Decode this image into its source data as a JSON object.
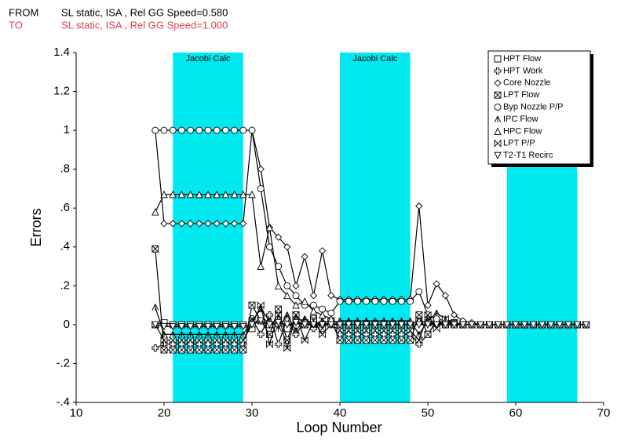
{
  "chart_data": {
    "type": "line",
    "header": [
      {
        "label": "FROM",
        "text": "SL static, ISA ,  Rel GG Speed=0.580",
        "color": "#000000"
      },
      {
        "label": "TO",
        "text": "SL static, ISA ,  Rel GG Speed=1.000",
        "color": "#d9434b"
      }
    ],
    "x_label": "Loop Number",
    "y_label": "Errors",
    "xlim": [
      10,
      70
    ],
    "xticks": [
      10,
      20,
      30,
      40,
      50,
      60,
      70
    ],
    "ylim": [
      -0.4,
      1.4
    ],
    "yticks": [
      {
        "value": -0.4,
        "label": "-.4"
      },
      {
        "value": -0.2,
        "label": "-.2"
      },
      0,
      {
        "value": 0.2,
        "label": ".2"
      },
      {
        "value": 0.4,
        "label": ".4"
      },
      {
        "value": 0.6,
        "label": ".6"
      },
      {
        "value": 0.8,
        "label": ".8"
      },
      1,
      1.2,
      1.4
    ],
    "bands": [
      {
        "xlim": [
          21,
          29
        ],
        "label": "Jacobi Calc"
      },
      {
        "xlim": [
          40,
          48
        ],
        "label": "Jacobi Calc"
      },
      {
        "xlim": [
          59,
          67
        ]
      }
    ],
    "band_color": "#00e8f0",
    "x": [
      19,
      20,
      21,
      22,
      23,
      24,
      25,
      26,
      27,
      28,
      29,
      30,
      31,
      32,
      33,
      34,
      35,
      36,
      37,
      38,
      39,
      40,
      41,
      42,
      43,
      44,
      45,
      46,
      47,
      48,
      49,
      50,
      51,
      52,
      53,
      54,
      55,
      56,
      57,
      58,
      59,
      60,
      61,
      62,
      63,
      64,
      65,
      66,
      67,
      68
    ],
    "series": [
      {
        "name": "HPT Flow",
        "marker": "square",
        "color": "#000000",
        "values": [
          0,
          0.01,
          0,
          0,
          0,
          0,
          0,
          0,
          0,
          0,
          0,
          -0.02,
          0.05,
          0,
          0.03,
          -0.02,
          0.02,
          0,
          0.01,
          0,
          0.01,
          0,
          0,
          0,
          0,
          0,
          0,
          0,
          0,
          0,
          0.02,
          0.01,
          0.01,
          0,
          0,
          0,
          0,
          0,
          0,
          0,
          0,
          0,
          0,
          0,
          0,
          0,
          0,
          0,
          0,
          0
        ]
      },
      {
        "name": "HPT Work",
        "marker": "plus",
        "color": "#000000",
        "values": [
          -0.12,
          -0.1,
          -0.1,
          -0.1,
          -0.1,
          -0.1,
          -0.1,
          -0.1,
          -0.1,
          -0.1,
          -0.1,
          0.03,
          -0.05,
          0.05,
          -0.1,
          0.03,
          -0.05,
          0.02,
          -0.02,
          0.01,
          0,
          -0.05,
          -0.05,
          -0.05,
          -0.05,
          -0.05,
          -0.05,
          -0.05,
          -0.05,
          -0.05,
          -0.1,
          -0.05,
          0.02,
          0.01,
          0.01,
          0,
          0,
          0,
          0,
          0,
          0,
          0,
          0,
          0,
          0,
          0,
          0,
          0,
          0,
          0
        ]
      },
      {
        "name": "Core Nozzle",
        "marker": "diamond",
        "color": "#000000",
        "values": [
          1,
          0.52,
          0.52,
          0.52,
          0.52,
          0.52,
          0.52,
          0.52,
          0.52,
          0.52,
          0.52,
          1,
          0.8,
          0.5,
          0.45,
          0.4,
          0.2,
          0.35,
          0.15,
          0.38,
          0.15,
          0.13,
          0.13,
          0.13,
          0.13,
          0.13,
          0.13,
          0.13,
          0.13,
          0.13,
          0.61,
          0.1,
          0.21,
          0.15,
          0.05,
          0.02,
          0.01,
          0,
          0,
          0,
          0,
          0,
          0,
          0,
          0,
          0,
          0,
          0,
          0,
          0
        ]
      },
      {
        "name": "LPT Flow",
        "marker": "xsquare",
        "color": "#000000",
        "values": [
          0.39,
          -0.13,
          -0.13,
          -0.13,
          -0.13,
          -0.13,
          -0.13,
          -0.13,
          -0.13,
          -0.13,
          -0.13,
          0.1,
          0.02,
          -0.05,
          0.08,
          -0.08,
          0.05,
          0,
          0.03,
          -0.02,
          0.02,
          -0.08,
          -0.08,
          -0.08,
          -0.08,
          -0.08,
          -0.08,
          -0.08,
          -0.08,
          -0.08,
          0.05,
          -0.05,
          0.02,
          0,
          0.01,
          0,
          0,
          0,
          0,
          0,
          0,
          0,
          0,
          0,
          0,
          0,
          0,
          0,
          0,
          0
        ]
      },
      {
        "name": "Byp Nozzle P/P",
        "marker": "circle",
        "color": "#000000",
        "values": [
          1,
          1,
          1,
          1,
          1,
          1,
          1,
          1,
          1,
          1,
          1,
          1,
          0.7,
          0.4,
          0.3,
          0.2,
          0.15,
          0.1,
          0.1,
          0.08,
          0.06,
          0.12,
          0.12,
          0.12,
          0.12,
          0.12,
          0.12,
          0.12,
          0.12,
          0.12,
          0.17,
          0.05,
          0.03,
          0.02,
          0.01,
          0,
          0,
          0,
          0,
          0,
          0,
          0,
          0,
          0,
          0,
          0,
          0,
          0,
          0,
          0
        ]
      },
      {
        "name": "IPC Flow",
        "marker": "lambda",
        "color": "#000000",
        "values": [
          0.09,
          -0.05,
          -0.05,
          -0.05,
          -0.05,
          -0.05,
          -0.05,
          -0.05,
          -0.05,
          -0.05,
          -0.05,
          0.02,
          0.08,
          0.02,
          -0.02,
          0.05,
          -0.03,
          0.03,
          0,
          0.02,
          0.01,
          0.02,
          0.02,
          0.02,
          0.02,
          0.02,
          0.02,
          0.02,
          0.02,
          0.02,
          -0.05,
          0.02,
          0.06,
          0.03,
          0.01,
          0,
          0,
          0,
          0,
          0,
          0,
          0,
          0,
          0,
          0,
          0,
          0,
          0,
          0,
          0
        ]
      },
      {
        "name": "HPC Flow",
        "marker": "triangle",
        "color": "#000000",
        "values": [
          0.58,
          0.67,
          0.67,
          0.67,
          0.67,
          0.67,
          0.67,
          0.67,
          0.67,
          0.67,
          0.67,
          0.67,
          0.3,
          0.5,
          0.2,
          0.15,
          0.1,
          0.12,
          0.07,
          0.05,
          0.03,
          0,
          0,
          0,
          0,
          0,
          0,
          0,
          0,
          0,
          0.02,
          0.01,
          0,
          0,
          0,
          0,
          0,
          0,
          0,
          0,
          0,
          0,
          0,
          0,
          0,
          0,
          0,
          0,
          0,
          0
        ]
      },
      {
        "name": "LPT P/P",
        "marker": "bowtie",
        "color": "#000000",
        "values": [
          0,
          -0.08,
          -0.08,
          -0.08,
          -0.08,
          -0.08,
          -0.08,
          -0.08,
          -0.08,
          -0.08,
          -0.08,
          0,
          0.1,
          -0.1,
          0.05,
          -0.12,
          0.05,
          -0.08,
          0.02,
          -0.05,
          0,
          -0.03,
          -0.03,
          -0.03,
          -0.03,
          -0.03,
          -0.03,
          -0.03,
          -0.03,
          -0.03,
          -0.08,
          0.05,
          -0.02,
          0.03,
          0.01,
          0,
          0,
          0,
          0,
          0,
          0,
          0,
          0,
          0,
          0,
          0,
          0,
          0,
          0,
          0
        ]
      },
      {
        "name": "T2-T1 Recirc",
        "marker": "downtriangle",
        "color": "#000000",
        "values": [
          0,
          -0.01,
          -0.01,
          -0.01,
          -0.01,
          -0.01,
          -0.01,
          -0.01,
          -0.01,
          -0.01,
          -0.01,
          0,
          0.02,
          0,
          0.01,
          0,
          0.01,
          0,
          0,
          0,
          0,
          0,
          0,
          0,
          0,
          0,
          0,
          0,
          0,
          0,
          0,
          0,
          0,
          0,
          0,
          0,
          0,
          0,
          0,
          0,
          0,
          0,
          0,
          0,
          0,
          0,
          0,
          0,
          0,
          0
        ]
      }
    ]
  }
}
